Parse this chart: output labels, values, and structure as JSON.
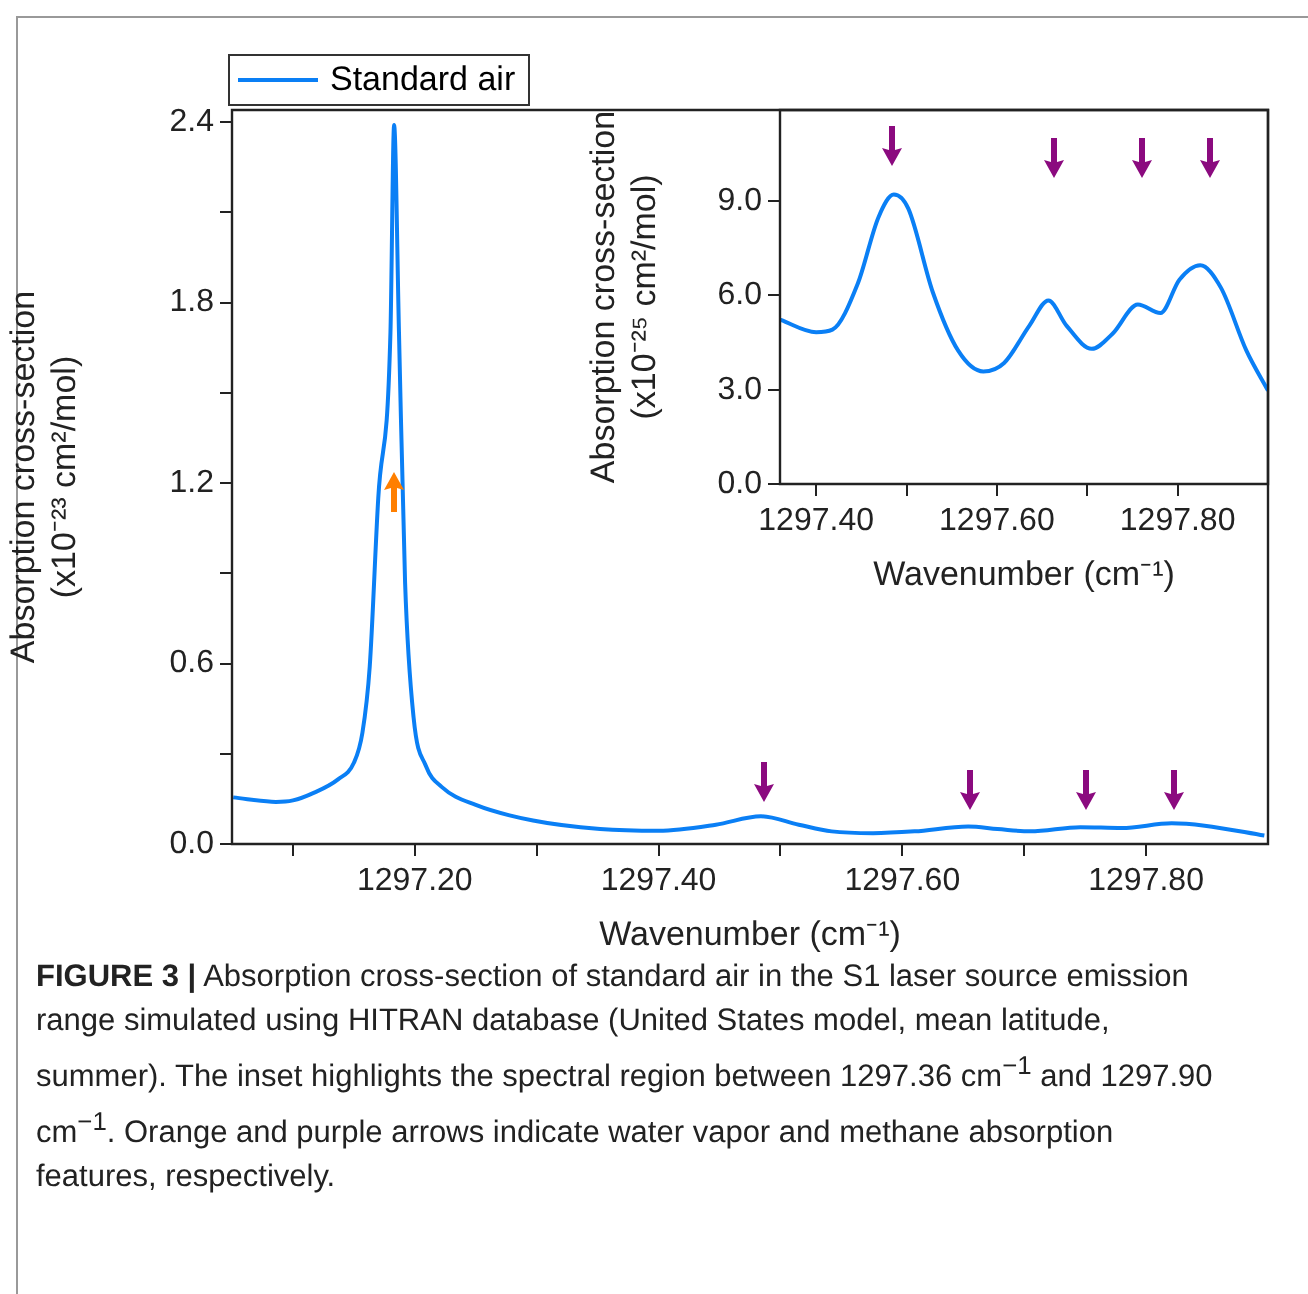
{
  "chart_data": [
    {
      "type": "line",
      "xlabel": "Wavenumber (cm⁻¹)",
      "ylabel": "Absorption cross-section\n(x10⁻²³ cm²/mol)",
      "legend": "top left",
      "grid": false,
      "marker": "none",
      "line_style": "solid",
      "xlim": [
        1297.05,
        1297.9
      ],
      "xticks": [
        {
          "value": 1297.1,
          "label": null
        },
        {
          "value": 1297.2,
          "label": "1297.20"
        },
        {
          "value": 1297.3,
          "label": null
        },
        {
          "value": 1297.4,
          "label": "1297.40"
        },
        {
          "value": 1297.5,
          "label": null
        },
        {
          "value": 1297.6,
          "label": "1297.60"
        },
        {
          "value": 1297.7,
          "label": null
        },
        {
          "value": 1297.8,
          "label": "1297.80"
        }
      ],
      "ylim": [
        0,
        2.44
      ],
      "yticks": [
        {
          "value": 0,
          "label": "0.0"
        },
        {
          "value": 0.3,
          "label": null
        },
        {
          "value": 0.6,
          "label": "0.6"
        },
        {
          "value": 0.9,
          "label": null
        },
        {
          "value": 1.2,
          "label": "1.2"
        },
        {
          "value": 1.5,
          "label": null
        },
        {
          "value": 1.8,
          "label": "1.8"
        },
        {
          "value": 2.1,
          "label": null
        },
        {
          "value": 2.4,
          "label": "2.4"
        }
      ],
      "series": [
        {
          "name": "Standard air",
          "color": "#0a7ff5",
          "x": [
            1297.051,
            1297.086,
            1297.1,
            1297.117,
            1297.137,
            1297.15,
            1297.157,
            1297.163,
            1297.17,
            1297.18,
            1297.183,
            1297.187,
            1297.192,
            1297.199,
            1297.209,
            1297.222,
            1297.25,
            1297.297,
            1297.352,
            1297.4,
            1297.447,
            1297.484,
            1297.515,
            1297.542,
            1297.576,
            1297.61,
            1297.654,
            1297.678,
            1297.705,
            1297.746,
            1297.78,
            1297.821,
            1297.848,
            1297.897
          ],
          "values": [
            0.155,
            0.14,
            0.145,
            0.17,
            0.215,
            0.27,
            0.37,
            0.59,
            1.15,
            1.7,
            2.39,
            1.7,
            0.87,
            0.42,
            0.26,
            0.19,
            0.13,
            0.078,
            0.05,
            0.044,
            0.064,
            0.092,
            0.064,
            0.042,
            0.036,
            0.042,
            0.058,
            0.05,
            0.042,
            0.056,
            0.053,
            0.069,
            0.061,
            0.028
          ]
        }
      ],
      "annotations": [
        "FIGURE 3 |",
        "Absorption cross-section of standard air in the S1 laser source emission range simulated using HITRAN database (United States model, mean latitude, summer). The inset highlights the spectral region between 1297.36 cm$^{−1}$ and 1297.90 cm$^{−1}$. Orange and purple arrows indicate water vapor and methane absorption features, respectively."
      ]
    },
    {
      "type": "line",
      "xlabel": "Wavenumber (cm⁻¹)",
      "ylabel": "Absorption cross-section\n(x10⁻²⁵ cm²/mol)",
      "grid": false,
      "marker": "none",
      "line_style": "solid",
      "xlim": [
        1297.36,
        1297.9
      ],
      "xticks": [
        {
          "value": 1297.4,
          "label": "1297.40"
        },
        {
          "value": 1297.5,
          "label": null
        },
        {
          "value": 1297.6,
          "label": "1297.60"
        },
        {
          "value": 1297.7,
          "label": null
        },
        {
          "value": 1297.8,
          "label": "1297.80"
        }
      ],
      "ylim": [
        0,
        11.9
      ],
      "yticks": [
        {
          "value": 0,
          "label": "0.0"
        },
        {
          "value": 3,
          "label": "3.0"
        },
        {
          "value": 6,
          "label": "6.0"
        },
        {
          "value": 9,
          "label": "9.0"
        }
      ],
      "series": [
        {
          "color": "#0a7ff5",
          "x": [
            1297.36,
            1297.4,
            1297.418,
            1297.446,
            1297.469,
            1297.486,
            1297.502,
            1297.529,
            1297.557,
            1297.585,
            1297.608,
            1297.636,
            1297.657,
            1297.677,
            1297.705,
            1297.728,
            1297.756,
            1297.781,
            1297.802,
            1297.825,
            1297.848,
            1297.876,
            1297.9
          ],
          "values": [
            5.23,
            4.83,
            4.91,
            6.37,
            8.49,
            9.21,
            8.76,
            6.11,
            4.25,
            3.58,
            3.85,
            5.04,
            5.84,
            5.04,
            4.3,
            4.78,
            5.71,
            5.44,
            6.5,
            6.96,
            6.24,
            4.25,
            2.97
          ]
        }
      ]
    }
  ]
}
